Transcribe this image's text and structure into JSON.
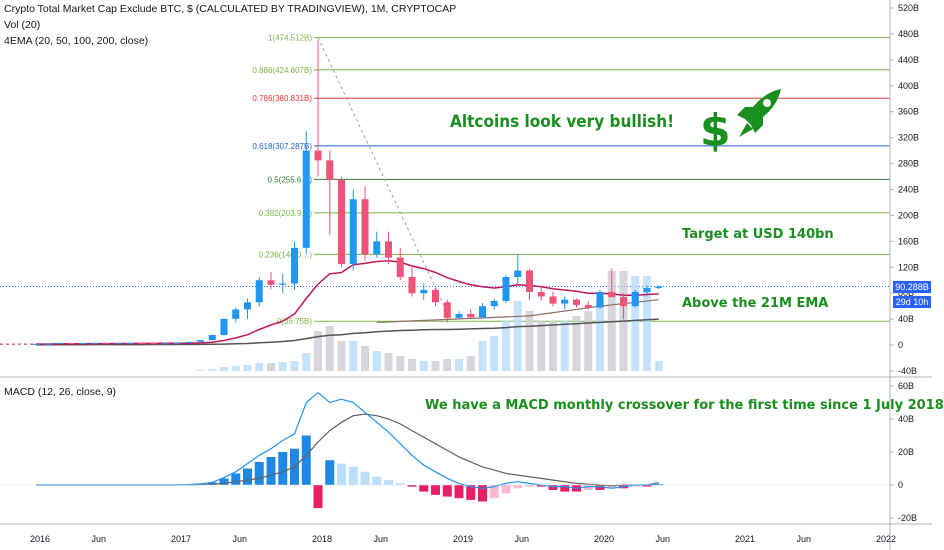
{
  "header": {
    "title": "Crypto Total Market Cap Exclude BTC, $ (CALCULATED BY TRADINGVIEW), 1M, CRYPTOCAP",
    "vol": "Vol (20)",
    "ema": "4EMA (20, 50, 100, 200, close)",
    "macd": "MACD (12, 26, close, 9)"
  },
  "annotations": {
    "bullish": "Altcoins look very bullish!",
    "target": "Target at USD 140bn",
    "ema": "Above the 21M EMA",
    "macd": "We have a MACD monthly crossover for the first time since 1 July 2018"
  },
  "price_tag": "90.288B",
  "countdown_tag": "29d 10h",
  "colors": {
    "up": "#2196f3",
    "down": "#f0527a",
    "ema_red": "#c2185b",
    "ema_gray": "#555555",
    "fib": "#7cb342",
    "fib_red": "#e53935",
    "fib_blue": "#1e63c9",
    "macd_line": "#2196f3",
    "signal_line": "#616161",
    "annotation": "#1a8f1f",
    "vol_up": "#bbdefb",
    "vol_down": "#cfcfd6"
  },
  "icons": [
    "dollar-sign-icon",
    "rocket-icon"
  ],
  "chart_data": [
    {
      "type": "candlestick",
      "title": "Crypto Total Market Cap Exclude BTC, $ (CALCULATED BY TRADINGVIEW), 1M, CRYPTOCAP",
      "ylabel": "",
      "ylim": [
        -40,
        520
      ],
      "yticks": [
        "520B",
        "480B",
        "440B",
        "400B",
        "360B",
        "320B",
        "280B",
        "240B",
        "200B",
        "160B",
        "120B",
        "80B",
        "40B",
        "0",
        "-40B"
      ],
      "ytick_values": [
        520,
        480,
        440,
        400,
        360,
        320,
        280,
        240,
        200,
        160,
        120,
        80,
        40,
        0,
        -40
      ],
      "x_labels": [
        "2016",
        "Jun",
        "2017",
        "Jun",
        "2018",
        "Jun",
        "2019",
        "Jun",
        "2020",
        "Jun",
        "2021",
        "Jun",
        "2022"
      ],
      "x_label_months": [
        0,
        5,
        12,
        17,
        24,
        29,
        36,
        41,
        48,
        53,
        60,
        65,
        72
      ],
      "start": "2016-01",
      "candles": [
        [
          1.6,
          2.1,
          1.3,
          1.9
        ],
        [
          1.9,
          2.6,
          1.8,
          2.4
        ],
        [
          2.4,
          3.5,
          2.2,
          3.3
        ],
        [
          3.3,
          3.5,
          2.9,
          3.1
        ],
        [
          3.1,
          3.4,
          2.9,
          3.2
        ],
        [
          3.2,
          3.8,
          2.8,
          3.3
        ],
        [
          3.3,
          3.4,
          2.8,
          2.9
        ],
        [
          2.9,
          3.2,
          2.8,
          3.0
        ],
        [
          3.0,
          3.2,
          2.9,
          3.1
        ],
        [
          3.1,
          3.2,
          2.8,
          2.9
        ],
        [
          2.9,
          3.1,
          2.7,
          2.8
        ],
        [
          2.8,
          3.0,
          2.7,
          2.9
        ],
        [
          2.9,
          3.2,
          2.9,
          3.1
        ],
        [
          3.1,
          5.1,
          3.0,
          5.0
        ],
        [
          5.0,
          7.8,
          4.7,
          7.6
        ],
        [
          7.6,
          15.8,
          7.5,
          15.5
        ],
        [
          15.5,
          41.0,
          15.0,
          40.5
        ],
        [
          40.5,
          58.0,
          35.0,
          55.0
        ],
        [
          55.0,
          72.0,
          40.0,
          66.0
        ],
        [
          66.0,
          105.0,
          60.0,
          100.0
        ],
        [
          100.0,
          113.0,
          86.0,
          93.0
        ],
        [
          93.0,
          110.0,
          80.0,
          95.0
        ],
        [
          95.0,
          160.0,
          85.0,
          150.0
        ],
        [
          150.0,
          330.0,
          140.0,
          300.0
        ],
        [
          300.0,
          470.0,
          260.0,
          285.0
        ],
        [
          285.0,
          300.0,
          170.0,
          255.0
        ],
        [
          255.0,
          260.0,
          120.0,
          125.0
        ],
        [
          125.0,
          240.0,
          115.0,
          225.0
        ],
        [
          225.0,
          245.0,
          130.0,
          140.0
        ],
        [
          140.0,
          175.0,
          135.0,
          160.0
        ],
        [
          160.0,
          175.0,
          125.0,
          135.0
        ],
        [
          135.0,
          150.0,
          100.0,
          105.0
        ],
        [
          105.0,
          120.0,
          75.0,
          80.0
        ],
        [
          80.0,
          95.0,
          70.0,
          85.0
        ],
        [
          85.0,
          88.0,
          60.0,
          66.0
        ],
        [
          66.0,
          70.0,
          35.0,
          42.0
        ],
        [
          42.0,
          52.0,
          40.0,
          48.0
        ],
        [
          48.0,
          55.0,
          42.0,
          43.0
        ],
        [
          43.0,
          65.0,
          42.0,
          60.0
        ],
        [
          60.0,
          72.0,
          55.0,
          68.0
        ],
        [
          68.0,
          108.0,
          65.0,
          105.0
        ],
        [
          105.0,
          140.0,
          95.0,
          115.0
        ],
        [
          115.0,
          117.0,
          70.0,
          82.0
        ],
        [
          82.0,
          92.0,
          68.0,
          75.0
        ],
        [
          75.0,
          82.0,
          60.0,
          64.0
        ],
        [
          64.0,
          75.0,
          55.0,
          70.0
        ],
        [
          70.0,
          72.0,
          58.0,
          62.0
        ],
        [
          62.0,
          68.0,
          55.0,
          58.0
        ],
        [
          58.0,
          85.0,
          56.0,
          82.0
        ],
        [
          82.0,
          118.0,
          78.0,
          74.0
        ],
        [
          74.0,
          80.0,
          40.0,
          60.0
        ],
        [
          60.0,
          85.0,
          58.0,
          82.0
        ],
        [
          82.0,
          92.0,
          75.0,
          88.0
        ],
        [
          88.0,
          92.0,
          86.0,
          90.288
        ]
      ],
      "ema20": [
        1.5,
        1.6,
        1.8,
        1.9,
        2.0,
        2.2,
        2.3,
        2.4,
        2.5,
        2.6,
        2.6,
        2.7,
        2.7,
        2.9,
        3.3,
        4.2,
        7.0,
        11.0,
        16.0,
        24.0,
        31.0,
        37.0,
        48.0,
        72.0,
        94.0,
        110.0,
        112.0,
        124.0,
        126.0,
        129.0,
        130.0,
        128.0,
        122.0,
        118.0,
        112.0,
        104.0,
        98.0,
        93.0,
        90.0,
        88.0,
        90.0,
        93.0,
        92.0,
        90.0,
        87.0,
        85.0,
        83.0,
        80.0,
        80.0,
        79.0,
        77.0,
        77.0,
        78.0,
        79.0
      ],
      "ema200": [
        0.5,
        0.5,
        0.6,
        0.6,
        0.6,
        0.7,
        0.7,
        0.8,
        0.8,
        0.8,
        0.9,
        0.9,
        0.9,
        1.0,
        1.1,
        1.2,
        1.5,
        2.0,
        2.5,
        3.5,
        4.5,
        5.5,
        7.0,
        10.0,
        13.0,
        15.0,
        16.0,
        18.0,
        19.0,
        20.5,
        21.5,
        22.5,
        23.0,
        23.5,
        24.0,
        24.0,
        24.5,
        25.0,
        25.5,
        26.0,
        27.0,
        28.5,
        29.0,
        30.0,
        31.0,
        32.0,
        33.0,
        34.0,
        35.0,
        36.0,
        37.0,
        38.0,
        39.0,
        40.0
      ],
      "ema_partial": [
        [
          29,
          35
        ],
        [
          42,
          45
        ],
        [
          48,
          60
        ],
        [
          53,
          70
        ]
      ],
      "volume_relative": [
        0,
        0,
        0,
        0,
        0,
        0,
        0,
        0,
        0,
        0,
        0,
        0,
        0,
        0,
        0.01,
        0.02,
        0.04,
        0.05,
        0.06,
        0.08,
        0.08,
        0.09,
        0.1,
        0.18,
        0.4,
        0.45,
        0.3,
        0.3,
        0.25,
        0.2,
        0.18,
        0.15,
        0.12,
        0.1,
        0.1,
        0.12,
        0.12,
        0.15,
        0.3,
        0.35,
        0.5,
        0.7,
        0.6,
        0.5,
        0.5,
        0.5,
        0.55,
        0.6,
        0.7,
        1.0,
        1.0,
        0.95,
        0.95,
        0.1
      ],
      "fib_levels": [
        {
          "label": "1(474.512B)",
          "value": 474.512
        },
        {
          "label": "0.886(424.607B)",
          "value": 424.607
        },
        {
          "label": "0.786(380.831B)",
          "value": 380.831
        },
        {
          "label": "0.618(307.287B)",
          "value": 307.287
        },
        {
          "label": "0.5(255.6…)",
          "value": 255.6
        },
        {
          "label": "0.382(203.9…)",
          "value": 203.9
        },
        {
          "label": "0.236(140.0…)",
          "value": 140.0
        },
        {
          "label": "0(36.75B)",
          "value": 36.75
        }
      ],
      "last_price": 90.288
    },
    {
      "type": "bar",
      "title": "MACD (12, 26, close, 9)",
      "ylim": [
        -20,
        60
      ],
      "yticks": [
        "60B",
        "40B",
        "20B",
        "0",
        "-20B"
      ],
      "ytick_values": [
        60,
        40,
        20,
        0,
        -20
      ],
      "histogram": [
        0,
        0,
        0,
        0,
        0,
        0,
        0,
        0,
        0,
        0,
        0,
        0,
        0,
        0.3,
        0.7,
        1.5,
        4,
        7,
        10,
        14,
        17,
        20,
        22,
        30,
        -14,
        15,
        13,
        11,
        8,
        5,
        3,
        1,
        -1,
        -4,
        -6,
        -7,
        -8,
        -9,
        -10,
        -8,
        -5,
        -2,
        -1,
        -1,
        -3,
        -4,
        -4,
        -3,
        -3,
        -2,
        -2,
        -1,
        -1,
        0.5
      ],
      "macd": [
        0,
        0,
        0,
        0,
        0,
        0,
        0,
        0,
        0,
        0,
        0,
        0,
        0,
        0.3,
        0.7,
        1.6,
        4.5,
        8,
        13,
        18,
        22,
        27,
        31,
        50,
        56,
        50,
        52,
        50,
        44,
        38,
        32,
        25,
        18,
        12,
        8,
        4,
        1,
        -1,
        -2,
        -1,
        1,
        2,
        1,
        0,
        -1,
        -1,
        -2,
        -1,
        -1,
        -2,
        -1,
        0,
        0,
        1.6
      ],
      "signal": [
        0,
        0,
        0,
        0,
        0,
        0,
        0,
        0,
        0,
        0,
        0,
        0,
        0,
        0.1,
        0.2,
        0.5,
        1,
        2,
        3,
        4,
        6,
        8,
        11,
        18,
        26,
        33,
        38,
        42,
        43,
        42,
        40,
        37,
        33,
        29,
        25,
        21,
        17,
        14,
        11,
        9,
        7,
        6,
        5,
        4,
        3,
        2,
        1,
        0.5,
        0,
        -0.5,
        0,
        0,
        0,
        0.5
      ]
    }
  ]
}
